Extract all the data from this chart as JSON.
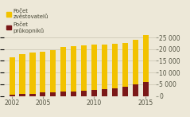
{
  "years": [
    2002,
    2003,
    2004,
    2005,
    2006,
    2007,
    2008,
    2009,
    2010,
    2011,
    2012,
    2013,
    2014,
    2015
  ],
  "zvěstovatelé": [
    16500,
    18000,
    18500,
    19000,
    19500,
    20800,
    21200,
    21500,
    21800,
    22000,
    22200,
    22800,
    24000,
    26000
  ],
  "průkopníci": [
    600,
    900,
    1000,
    1600,
    1600,
    1800,
    2000,
    2200,
    2600,
    2900,
    3200,
    3800,
    4800,
    6000
  ],
  "bar_color_main": "#F2C200",
  "bar_color_pioneer": "#7B1818",
  "background_color": "#EDE8D8",
  "grid_color": "#C9C3B0",
  "legend_label_1": "Počet\nzvěstovatelů",
  "legend_label_2": "Počet\nprůkopníků",
  "ylim": [
    0,
    27000
  ],
  "yticks": [
    0,
    5000,
    10000,
    15000,
    20000,
    25000
  ],
  "ytick_labels": [
    "0",
    "5 000",
    "10 000",
    "15 000",
    "20 000",
    "25 000"
  ],
  "xticks": [
    2002,
    2005,
    2010,
    2015
  ],
  "tick_fontsize": 5.5,
  "bar_width": 0.55,
  "xlim_left": 2001.2,
  "xlim_right": 2016.0
}
